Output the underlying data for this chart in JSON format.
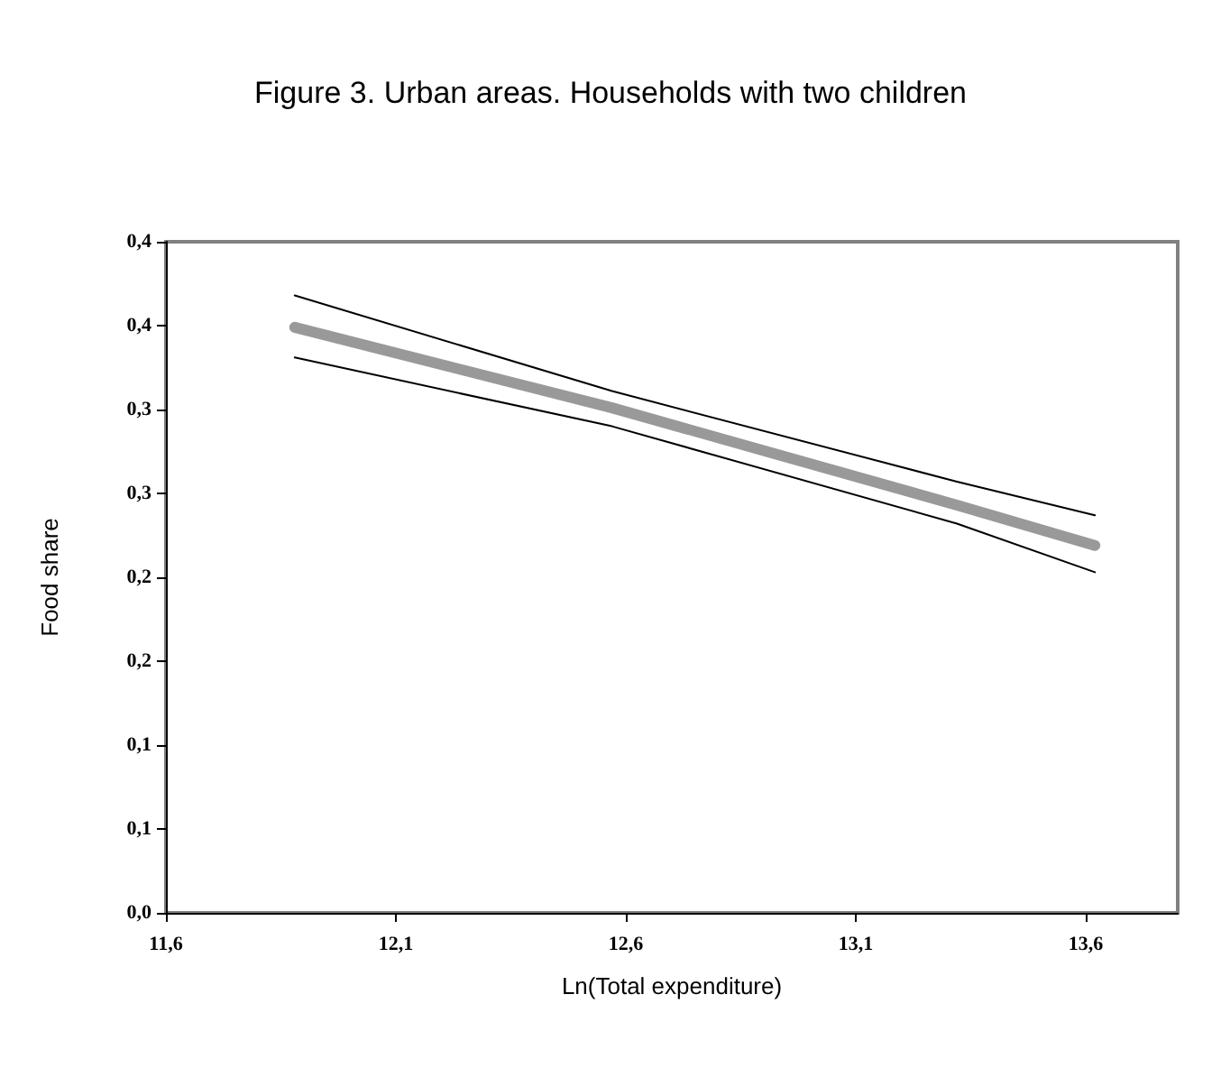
{
  "chart_data": {
    "type": "line",
    "title": "Figure 3. Urban areas. Households with two children",
    "xlabel": "Ln(Total expenditure)",
    "ylabel": "Food share",
    "xlim": [
      11.6,
      13.8
    ],
    "xticks": [
      {
        "value": 11.6,
        "label": "11,6"
      },
      {
        "value": 12.1,
        "label": "12,1"
      },
      {
        "value": 12.6,
        "label": "12,6"
      },
      {
        "value": 13.1,
        "label": "13,1"
      },
      {
        "value": 13.6,
        "label": "13,6"
      }
    ],
    "ylim": [
      0,
      0.4
    ],
    "yticks": [
      {
        "value": 0,
        "label": "0,0"
      },
      {
        "value": 0.05,
        "label": "0,1"
      },
      {
        "value": 0.1,
        "label": "0,1"
      },
      {
        "value": 0.15,
        "label": "0,2"
      },
      {
        "value": 0.2,
        "label": "0,2"
      },
      {
        "value": 0.25,
        "label": "0,3"
      },
      {
        "value": 0.3,
        "label": "0,3"
      },
      {
        "value": 0.35,
        "label": "0,4"
      },
      {
        "value": 0.4,
        "label": "0,4"
      }
    ],
    "grid": false,
    "marker": "none",
    "line_style": "solid",
    "series": [
      {
        "color": "#999999",
        "x": [
          11.88,
          12.57,
          13.32,
          13.62
        ],
        "values": [
          0.349,
          0.301,
          0.243,
          0.219
        ]
      },
      {
        "color": "#000000",
        "x": [
          11.88,
          12.57,
          13.32,
          13.62
        ],
        "values": [
          0.368,
          0.311,
          0.257,
          0.237
        ]
      },
      {
        "color": "#000000",
        "x": [
          11.88,
          12.57,
          13.32,
          13.62
        ],
        "values": [
          0.331,
          0.29,
          0.232,
          0.203
        ]
      }
    ]
  }
}
